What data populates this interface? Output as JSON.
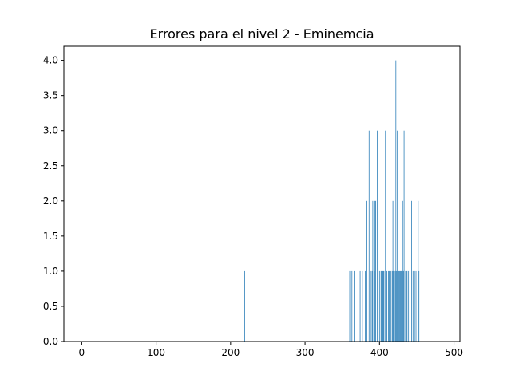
{
  "chart_data": {
    "type": "bar",
    "title": "Errores para el nivel 2 - Eminemcia",
    "xlabel": "",
    "ylabel": "",
    "xlim": [
      -24,
      508
    ],
    "ylim": [
      0,
      4.2
    ],
    "xticks": [
      0,
      100,
      200,
      300,
      400,
      500
    ],
    "yticks": [
      0.0,
      0.5,
      1.0,
      1.5,
      2.0,
      2.5,
      3.0,
      3.5,
      4.0
    ],
    "xtick_labels": [
      "0",
      "100",
      "200",
      "300",
      "400",
      "500"
    ],
    "ytick_labels": [
      "0.0",
      "0.5",
      "1.0",
      "1.5",
      "2.0",
      "2.5",
      "3.0",
      "3.5",
      "4.0"
    ],
    "bar_color": "#1f77b4",
    "bar_width": 1,
    "points": [
      {
        "x": 219,
        "y": 1
      },
      {
        "x": 360,
        "y": 1
      },
      {
        "x": 363,
        "y": 1
      },
      {
        "x": 366,
        "y": 1
      },
      {
        "x": 374,
        "y": 1
      },
      {
        "x": 377,
        "y": 1
      },
      {
        "x": 381,
        "y": 1
      },
      {
        "x": 383,
        "y": 2
      },
      {
        "x": 386,
        "y": 3
      },
      {
        "x": 388,
        "y": 1
      },
      {
        "x": 390,
        "y": 1
      },
      {
        "x": 391,
        "y": 2
      },
      {
        "x": 393,
        "y": 1
      },
      {
        "x": 394,
        "y": 2
      },
      {
        "x": 395,
        "y": 2
      },
      {
        "x": 397,
        "y": 3
      },
      {
        "x": 398,
        "y": 1
      },
      {
        "x": 400,
        "y": 1
      },
      {
        "x": 402,
        "y": 1
      },
      {
        "x": 403,
        "y": 1
      },
      {
        "x": 404,
        "y": 1
      },
      {
        "x": 405,
        "y": 1
      },
      {
        "x": 406,
        "y": 1
      },
      {
        "x": 408,
        "y": 3
      },
      {
        "x": 409,
        "y": 1
      },
      {
        "x": 410,
        "y": 1
      },
      {
        "x": 412,
        "y": 1
      },
      {
        "x": 413,
        "y": 1
      },
      {
        "x": 414,
        "y": 1
      },
      {
        "x": 415,
        "y": 1
      },
      {
        "x": 417,
        "y": 1
      },
      {
        "x": 418,
        "y": 2
      },
      {
        "x": 419,
        "y": 1
      },
      {
        "x": 421,
        "y": 1
      },
      {
        "x": 422,
        "y": 4
      },
      {
        "x": 423,
        "y": 1
      },
      {
        "x": 424,
        "y": 3
      },
      {
        "x": 425,
        "y": 2
      },
      {
        "x": 426,
        "y": 1
      },
      {
        "x": 427,
        "y": 1
      },
      {
        "x": 428,
        "y": 1
      },
      {
        "x": 429,
        "y": 1
      },
      {
        "x": 430,
        "y": 1
      },
      {
        "x": 431,
        "y": 2
      },
      {
        "x": 432,
        "y": 1
      },
      {
        "x": 433,
        "y": 3
      },
      {
        "x": 435,
        "y": 1
      },
      {
        "x": 436,
        "y": 1
      },
      {
        "x": 437,
        "y": 1
      },
      {
        "x": 439,
        "y": 1
      },
      {
        "x": 441,
        "y": 1
      },
      {
        "x": 443,
        "y": 2
      },
      {
        "x": 445,
        "y": 1
      },
      {
        "x": 447,
        "y": 1
      },
      {
        "x": 449,
        "y": 1
      },
      {
        "x": 452,
        "y": 2
      },
      {
        "x": 453,
        "y": 1
      }
    ]
  }
}
